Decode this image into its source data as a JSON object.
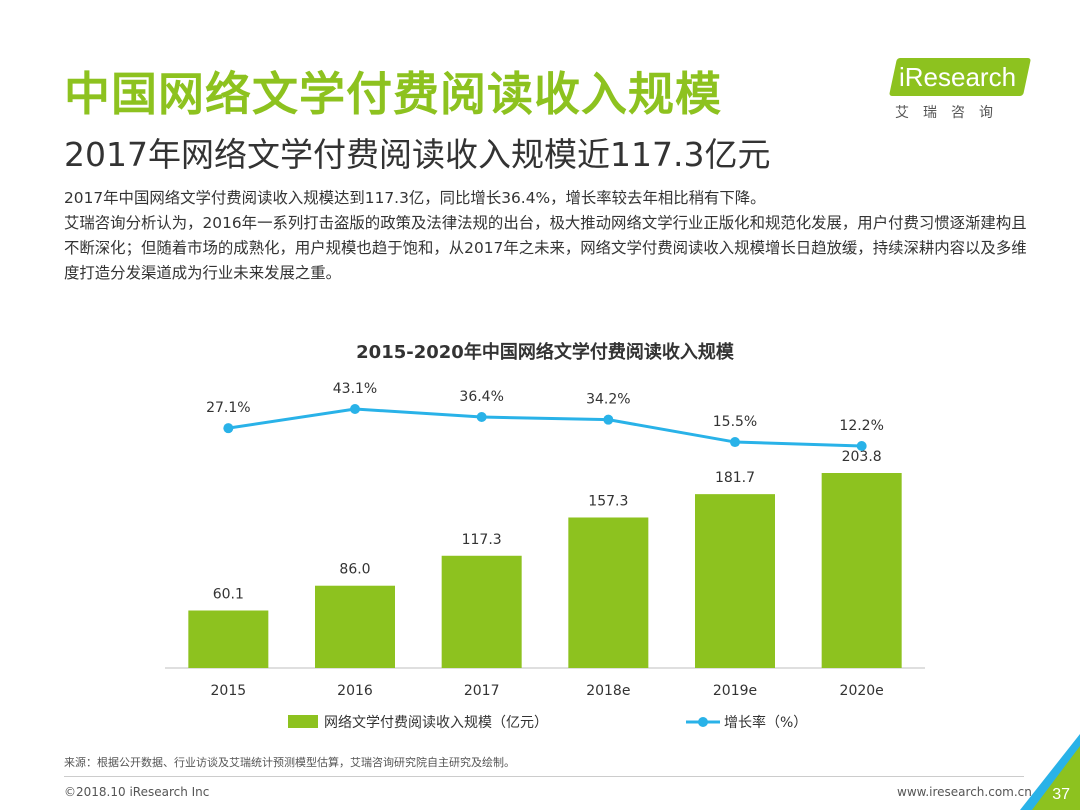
{
  "header": {
    "title": "中国网络文学付费阅读收入规模",
    "subtitle": "2017年网络文学付费阅读收入规模近117.3亿元"
  },
  "logo": {
    "brand": "iResearch",
    "cn": "艾瑞咨询"
  },
  "body": {
    "p1": "2017年中国网络文学付费阅读收入规模达到117.3亿，同比增长36.4%，增长率较去年相比稍有下降。",
    "p2": "艾瑞咨询分析认为，2016年一系列打击盗版的政策及法律法规的出台，极大推动网络文学行业正版化和规范化发展，用户付费习惯逐渐建构且不断深化；但随着市场的成熟化，用户规模也趋于饱和，从2017年之未来，网络文学付费阅读收入规模增长日趋放缓，持续深耕内容以及多维度打造分发渠道成为行业未来发展之重。"
  },
  "chart_data": {
    "type": "bar",
    "title": "2015-2020年中国网络文学付费阅读收入规模",
    "categories": [
      "2015",
      "2016",
      "2017",
      "2018e",
      "2019e",
      "2020e"
    ],
    "series": [
      {
        "name": "网络文学付费阅读收入规模（亿元）",
        "type": "bar",
        "color": "#8dc21f",
        "values": [
          60.1,
          86.0,
          117.3,
          157.3,
          181.7,
          203.8
        ],
        "labels": [
          "60.1",
          "86.0",
          "117.3",
          "157.3",
          "181.7",
          "203.8"
        ]
      },
      {
        "name": "增长率（%）",
        "type": "line",
        "color": "#29b2e8",
        "values": [
          27.1,
          43.1,
          36.4,
          34.2,
          15.5,
          12.2
        ],
        "labels": [
          "27.1%",
          "43.1%",
          "36.4%",
          "34.2%",
          "15.5%",
          "12.2%"
        ]
      }
    ],
    "xlabel": "",
    "ylabel": "",
    "ylim": [
      0,
      220
    ],
    "grid": false,
    "legend": "bottom"
  },
  "footer": {
    "source": "来源：根据公开数据、行业访谈及艾瑞统计预测模型估算，艾瑞咨询研究院自主研究及绘制。",
    "copyright": "©2018.10 iResearch Inc",
    "website": "www.iresearch.com.cn",
    "page": "37"
  },
  "colors": {
    "accent": "#8dc21f",
    "line": "#29b2e8",
    "text": "#333333"
  }
}
